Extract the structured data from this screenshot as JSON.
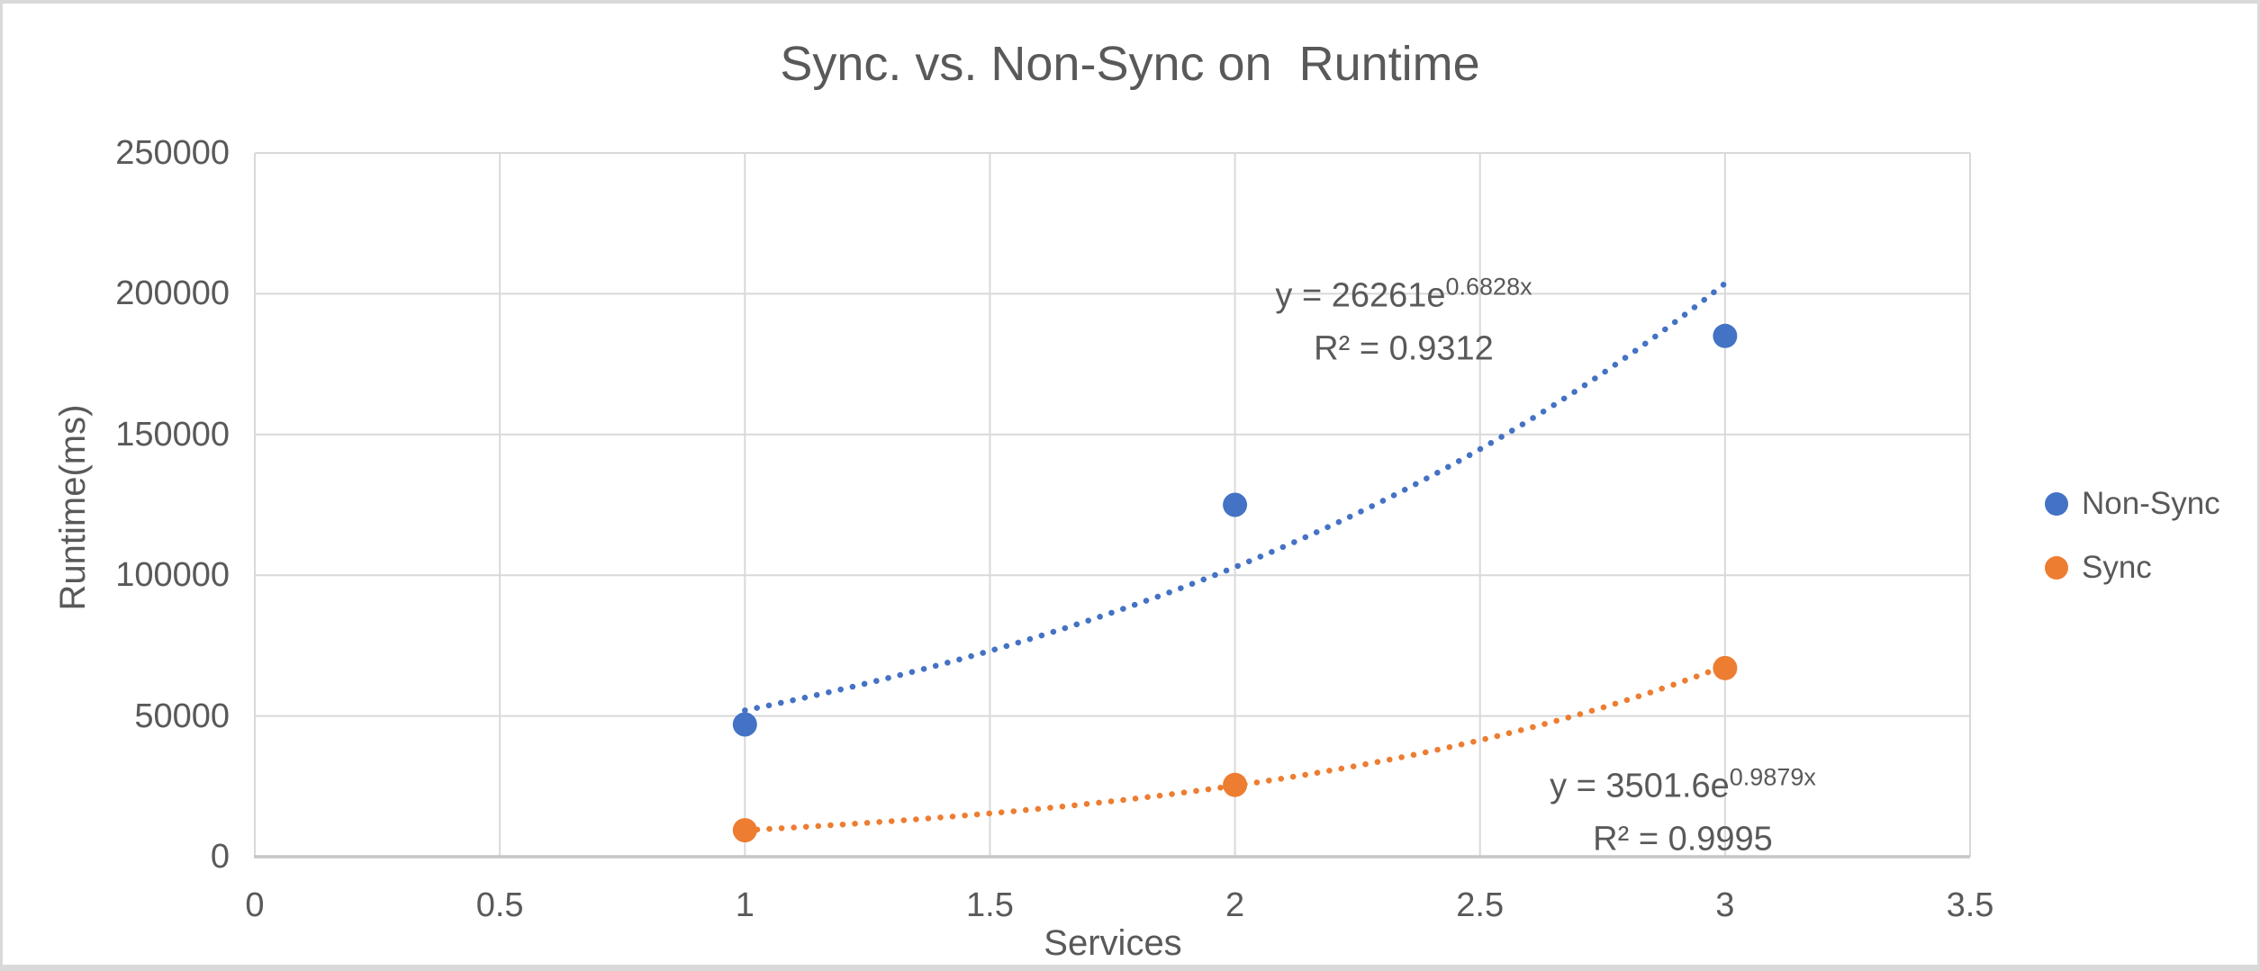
{
  "chart_data": {
    "type": "scatter",
    "title": "Sync. vs. Non-Sync on  Runtime",
    "xlabel": "Services",
    "ylabel": "Runtime(ms)",
    "xlim": [
      0,
      3.5
    ],
    "ylim": [
      0,
      250000
    ],
    "grid": true,
    "legend_position": "right",
    "text_color": "#595959",
    "gridline_color": "#d9d9d9",
    "axis_line_color": "#c6c6c6",
    "x_ticks": [
      {
        "value": 0,
        "label": "0"
      },
      {
        "value": 0.5,
        "label": "0.5"
      },
      {
        "value": 1,
        "label": "1"
      },
      {
        "value": 1.5,
        "label": "1.5"
      },
      {
        "value": 2,
        "label": "2"
      },
      {
        "value": 2.5,
        "label": "2.5"
      },
      {
        "value": 3,
        "label": "3"
      },
      {
        "value": 3.5,
        "label": "3.5"
      }
    ],
    "y_ticks": [
      {
        "value": 0,
        "label": "0"
      },
      {
        "value": 50000,
        "label": "50000"
      },
      {
        "value": 100000,
        "label": "100000"
      },
      {
        "value": 150000,
        "label": "150000"
      },
      {
        "value": 200000,
        "label": "200000"
      },
      {
        "value": 250000,
        "label": "250000"
      }
    ],
    "series": [
      {
        "name": "Non-Sync",
        "color": "#4472C4",
        "points": [
          {
            "x": 1,
            "y": 47000
          },
          {
            "x": 2,
            "y": 125000
          },
          {
            "x": 3,
            "y": 185000
          }
        ],
        "trendline": {
          "type": "exponential",
          "a": 26261,
          "b": 0.6828,
          "r_squared": 0.9312,
          "x_range": [
            1,
            3
          ],
          "equation_base": "y = 26261e",
          "equation_exponent": "0.6828x",
          "r2_label": "R² = 0.9312"
        }
      },
      {
        "name": "Sync",
        "color": "#ED7D31",
        "points": [
          {
            "x": 1,
            "y": 9400
          },
          {
            "x": 2,
            "y": 25500
          },
          {
            "x": 3,
            "y": 67000
          }
        ],
        "trendline": {
          "type": "exponential",
          "a": 3501.6,
          "b": 0.9879,
          "r_squared": 0.9995,
          "x_range": [
            1,
            3
          ],
          "equation_base": "y = 3501.6e",
          "equation_exponent": "0.9879x",
          "r2_label": "R² = 0.9995"
        }
      }
    ]
  }
}
